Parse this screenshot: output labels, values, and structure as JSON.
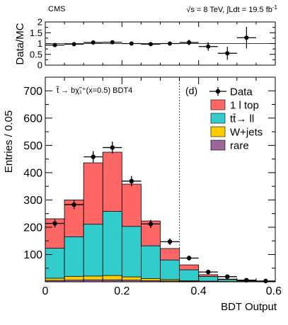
{
  "header": {
    "experiment": "CMS",
    "lumi_text": "√s = 8 TeV, ∫Ldt = 19.5 fb",
    "lumi_sup": "-1"
  },
  "annotations": {
    "signal_label": "t̃ → bχ̃₁⁺(x=0.5) BDT4",
    "panel_label": "(d)"
  },
  "colors": {
    "one_lepton_top": "#ff6666",
    "ttbar_dilepton": "#33cccc",
    "w_jets": "#ffcc00",
    "rare": "#996699",
    "data": "#000000"
  },
  "chart_data": [
    {
      "type": "scatter",
      "panel": "ratio",
      "ylabel": "Data/MC",
      "xlim": [
        0,
        0.6
      ],
      "ylim": [
        0,
        2
      ],
      "yticks": [
        "0",
        "0.5",
        "1",
        "1.5",
        "2"
      ],
      "reference_line": 1,
      "points": [
        {
          "x": 0.025,
          "y": 0.93,
          "err": 0.07
        },
        {
          "x": 0.075,
          "y": 0.97,
          "err": 0.06
        },
        {
          "x": 0.125,
          "y": 1.05,
          "err": 0.05
        },
        {
          "x": 0.175,
          "y": 1.06,
          "err": 0.05
        },
        {
          "x": 0.225,
          "y": 1.0,
          "err": 0.05
        },
        {
          "x": 0.275,
          "y": 0.97,
          "err": 0.07
        },
        {
          "x": 0.325,
          "y": 1.0,
          "err": 0.08
        },
        {
          "x": 0.375,
          "y": 1.05,
          "err": 0.13
        },
        {
          "x": 0.425,
          "y": 0.86,
          "err": 0.2
        },
        {
          "x": 0.475,
          "y": 0.55,
          "err": 0.3
        },
        {
          "x": 0.525,
          "y": 1.27,
          "err": 0.5
        }
      ]
    },
    {
      "type": "bar",
      "panel": "main",
      "stacked": true,
      "xlabel": "BDT Output",
      "ylabel": "Entries / 0.05",
      "xlim": [
        0,
        0.6
      ],
      "ylim": [
        0,
        750
      ],
      "xticks": [
        "0",
        "0.2",
        "0.4",
        "0.6"
      ],
      "yticks": [
        "100",
        "200",
        "300",
        "400",
        "500",
        "600",
        "700"
      ],
      "bin_width": 0.05,
      "bin_edges": [
        0,
        0.05,
        0.1,
        0.15,
        0.2,
        0.25,
        0.3,
        0.35,
        0.4,
        0.45,
        0.5,
        0.55,
        0.6
      ],
      "cut_line_x": 0.35,
      "legend_position": "top-right",
      "series": [
        {
          "name": "rare",
          "color_key": "rare",
          "values": [
            5,
            6,
            7,
            7,
            6,
            4,
            3,
            1.5,
            1,
            0.5,
            0.2,
            0.1
          ]
        },
        {
          "name": "W+jets",
          "color_key": "w_jets",
          "values": [
            8,
            14,
            14,
            16,
            12,
            8,
            5,
            2.5,
            1.5,
            0.8,
            0.4,
            0.2
          ]
        },
        {
          "name": "tt̄→ ll",
          "color_key": "ttbar_dilepton",
          "values": [
            110,
            145,
            190,
            235,
            185,
            120,
            72,
            40,
            17,
            6.7,
            2.4,
            0.7
          ]
        },
        {
          "name": "1 l top",
          "color_key": "one_lepton_top",
          "values": [
            108,
            135,
            225,
            217,
            155,
            91,
            42,
            18,
            6.5,
            2,
            1,
            0.5
          ]
        }
      ],
      "data": {
        "name": "Data",
        "points": [
          {
            "x": 0.025,
            "y": 214,
            "err": 15
          },
          {
            "x": 0.075,
            "y": 283,
            "err": 17
          },
          {
            "x": 0.125,
            "y": 458,
            "err": 21
          },
          {
            "x": 0.175,
            "y": 492,
            "err": 22
          },
          {
            "x": 0.225,
            "y": 369,
            "err": 19
          },
          {
            "x": 0.275,
            "y": 212,
            "err": 15
          },
          {
            "x": 0.325,
            "y": 147,
            "err": 12
          },
          {
            "x": 0.375,
            "y": 87,
            "err": 9
          },
          {
            "x": 0.425,
            "y": 36,
            "err": 6
          },
          {
            "x": 0.475,
            "y": 19,
            "err": 4
          },
          {
            "x": 0.525,
            "y": 6,
            "err": 2.5
          },
          {
            "x": 0.575,
            "y": 3,
            "err": 1.7
          }
        ]
      },
      "legend": [
        {
          "label": "Data",
          "kind": "marker",
          "color_key": "data"
        },
        {
          "label": "1 l top",
          "kind": "box",
          "color_key": "one_lepton_top"
        },
        {
          "label": "tt̄→ ll",
          "kind": "box",
          "color_key": "ttbar_dilepton"
        },
        {
          "label": "W+jets",
          "kind": "box",
          "color_key": "w_jets"
        },
        {
          "label": "rare",
          "kind": "box",
          "color_key": "rare"
        }
      ]
    }
  ]
}
